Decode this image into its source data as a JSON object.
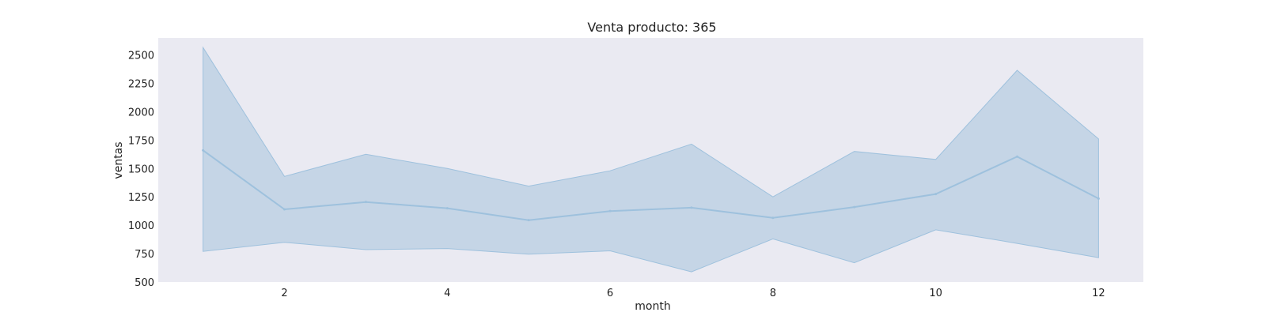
{
  "chart_data": {
    "type": "area",
    "title": "Venta producto: 365",
    "xlabel": "month",
    "ylabel": "ventas",
    "xlim": [
      0.45,
      12.55
    ],
    "ylim": [
      500,
      2650
    ],
    "xticks": [
      2,
      4,
      6,
      8,
      10,
      12
    ],
    "yticks": [
      500,
      750,
      1000,
      1250,
      1500,
      1750,
      2000,
      2250,
      2500
    ],
    "grid": false,
    "legend": "none",
    "colors": {
      "background": "#eaeaf2",
      "line": "#9ec1dd",
      "band": "#b8cde2"
    },
    "x": [
      1,
      2,
      3,
      4,
      5,
      6,
      7,
      8,
      9,
      10,
      11,
      12
    ],
    "series": [
      {
        "values": [
          1660,
          1140,
          1205,
          1150,
          1045,
          1125,
          1155,
          1065,
          1160,
          1275,
          1605,
          1235
        ]
      }
    ],
    "band": {
      "upper": [
        2565,
        1430,
        1625,
        1500,
        1345,
        1480,
        1715,
        1250,
        1650,
        1580,
        2365,
        1760
      ],
      "lower": [
        770,
        850,
        785,
        795,
        745,
        775,
        590,
        880,
        670,
        960,
        840,
        715
      ]
    }
  }
}
